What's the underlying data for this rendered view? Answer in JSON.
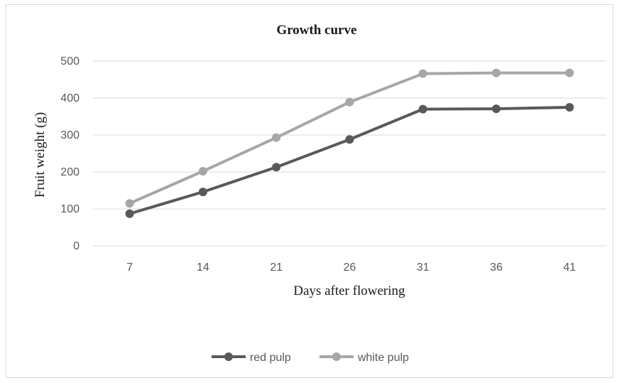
{
  "chart_data": {
    "type": "line",
    "title": "Growth curve",
    "xlabel": "Days after flowering",
    "ylabel": "Fruit weight (g)",
    "categories": [
      "7",
      "14",
      "21",
      "26",
      "31",
      "36",
      "41"
    ],
    "ylim": [
      0,
      500
    ],
    "yticks": [
      0,
      100,
      200,
      300,
      400,
      500
    ],
    "grid": true,
    "legend_position": "bottom",
    "series": [
      {
        "name": "red pulp",
        "color": "#595959",
        "values": [
          87,
          146,
          213,
          288,
          370,
          371,
          375
        ]
      },
      {
        "name": "white pulp",
        "color": "#a6a6a6",
        "values": [
          115,
          202,
          293,
          389,
          466,
          468,
          468
        ]
      }
    ]
  }
}
